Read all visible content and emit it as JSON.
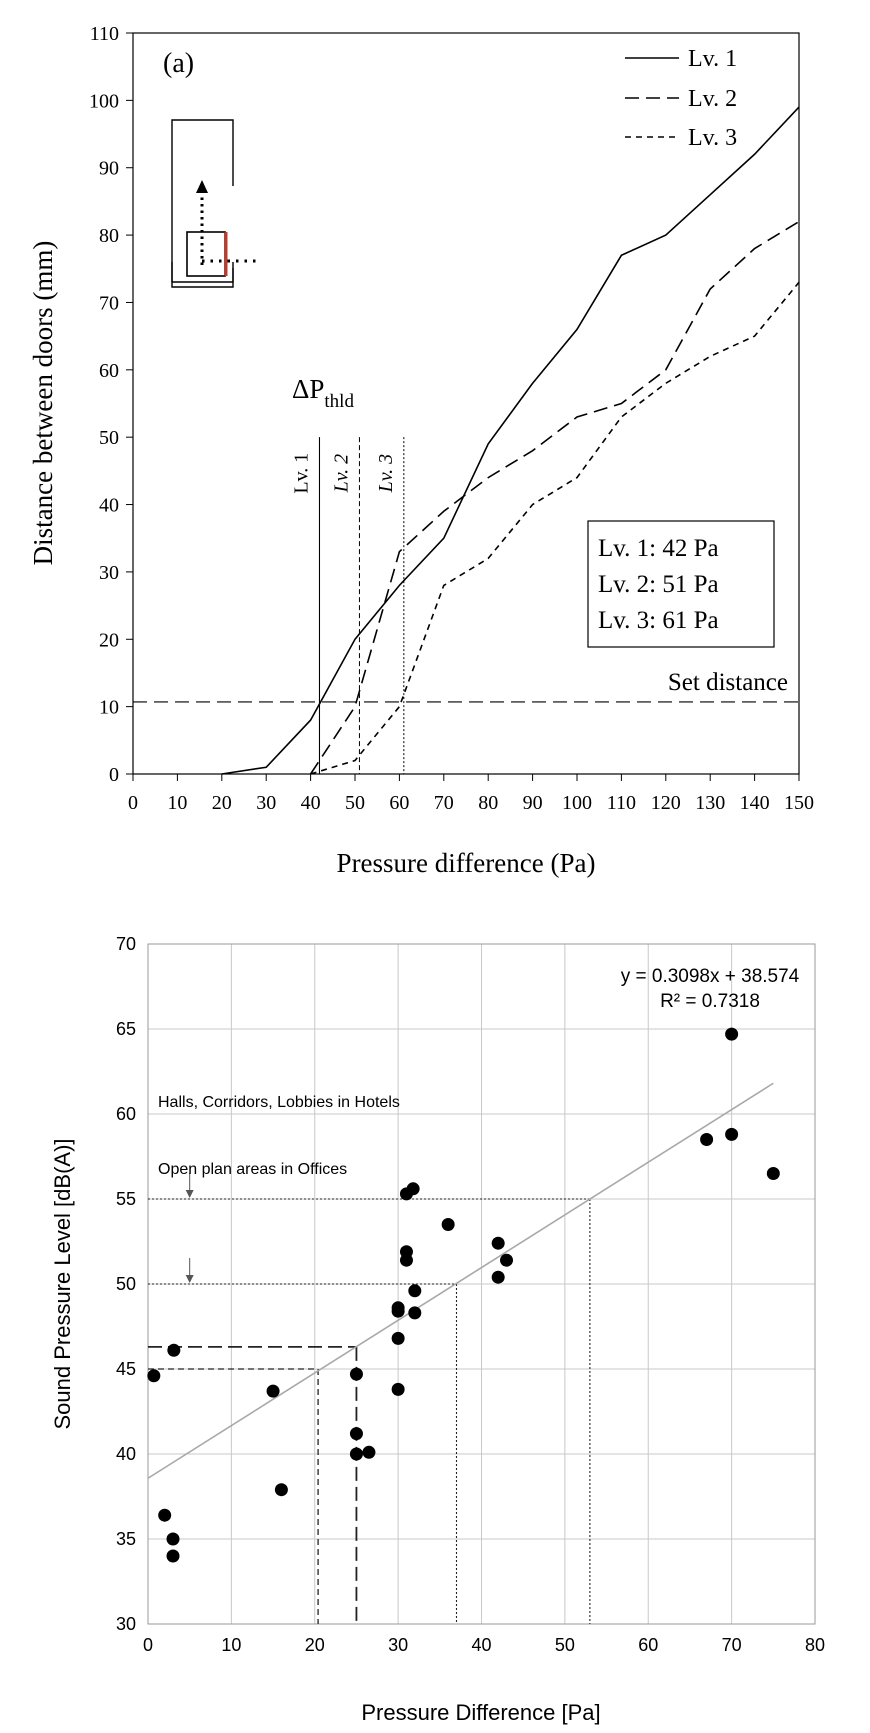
{
  "chart_data": [
    {
      "type": "line",
      "panel_label": "(a)",
      "xlabel": "Pressure difference (Pa)",
      "ylabel": "Distance between doors  (mm)",
      "xlim": [
        0,
        150
      ],
      "ylim": [
        0,
        110
      ],
      "xticks": [
        0,
        10,
        20,
        30,
        40,
        50,
        60,
        70,
        80,
        90,
        100,
        110,
        120,
        130,
        140,
        150
      ],
      "yticks": [
        0,
        10,
        20,
        30,
        40,
        50,
        60,
        70,
        80,
        90,
        100,
        110
      ],
      "grid": false,
      "legend": "top-right",
      "series": [
        {
          "name": "Lv. 1",
          "style": "solid",
          "x": [
            20,
            30,
            40,
            50,
            60,
            70,
            80,
            90,
            100,
            110,
            120,
            130,
            140,
            150
          ],
          "y": [
            0,
            1,
            8,
            20,
            28,
            35,
            49,
            58,
            66,
            77,
            80,
            86,
            92,
            99
          ]
        },
        {
          "name": "Lv. 2",
          "style": "long-dash",
          "x": [
            40,
            50,
            60,
            70,
            80,
            90,
            100,
            110,
            120,
            130,
            140,
            150
          ],
          "y": [
            0,
            10,
            33,
            39,
            44,
            48,
            53,
            55,
            60,
            72,
            78,
            82
          ]
        },
        {
          "name": "Lv. 3",
          "style": "short-dash",
          "x": [
            40,
            50,
            60,
            70,
            80,
            90,
            100,
            110,
            120,
            130,
            140,
            150
          ],
          "y": [
            0,
            2,
            10,
            28,
            32,
            40,
            44,
            53,
            58,
            62,
            65,
            73
          ]
        }
      ],
      "threshold_label": "ΔP",
      "threshold_subscript": "thld",
      "thresholds": [
        {
          "label": "Lv. 1",
          "x": 42,
          "style": "solid"
        },
        {
          "label": "Lv. 2",
          "x": 51,
          "style": "dashed"
        },
        {
          "label": "Lv. 3",
          "x": 61,
          "style": "dotted"
        }
      ],
      "threshold_box": [
        "Lv. 1: 42 Pa",
        "Lv. 2: 51 Pa",
        "Lv. 3: 61 Pa"
      ],
      "set_distance": {
        "label": "Set distance",
        "y": 10.7
      }
    },
    {
      "type": "scatter",
      "xlabel": "Pressure Difference [Pa]",
      "ylabel": "Sound Pressure Level [dB(A)]",
      "xlim": [
        0,
        80
      ],
      "ylim": [
        30,
        70
      ],
      "xticks": [
        0,
        10,
        20,
        30,
        40,
        50,
        60,
        70,
        80
      ],
      "yticks": [
        30,
        35,
        40,
        45,
        50,
        55,
        60,
        65,
        70
      ],
      "grid": true,
      "points": [
        [
          0.7,
          44.6
        ],
        [
          2,
          36.4
        ],
        [
          3,
          35.0
        ],
        [
          3,
          34.0
        ],
        [
          3.1,
          46.1
        ],
        [
          15,
          43.7
        ],
        [
          16,
          37.9
        ],
        [
          25,
          44.7
        ],
        [
          25,
          41.2
        ],
        [
          25,
          40.0
        ],
        [
          26.5,
          40.1
        ],
        [
          30,
          48.6
        ],
        [
          30,
          48.4
        ],
        [
          30,
          46.8
        ],
        [
          30,
          43.8
        ],
        [
          31,
          55.3
        ],
        [
          31,
          51.9
        ],
        [
          31,
          51.4
        ],
        [
          31.8,
          55.6
        ],
        [
          32,
          49.6
        ],
        [
          32,
          48.3
        ],
        [
          36,
          53.5
        ],
        [
          42,
          52.4
        ],
        [
          42,
          50.4
        ],
        [
          43,
          51.4
        ],
        [
          67,
          58.5
        ],
        [
          70,
          64.7
        ],
        [
          70,
          58.8
        ],
        [
          75,
          56.5
        ]
      ],
      "trendline": {
        "equation": "y = 0.3098x + 38.574",
        "r_squared": "R² = 0.7318",
        "slope": 0.3098,
        "intercept": 38.574,
        "x_range": [
          0,
          75
        ]
      },
      "reference_levels": [
        {
          "label": "Halls, Corridors, Lobbies in Hotels",
          "y": 55,
          "x_intersect": 53.0,
          "arrow_x": 5,
          "style": "dotted"
        },
        {
          "label": "Open plan areas in Offices",
          "y": 50,
          "x_intersect": 37.0,
          "arrow_x": 5,
          "style": "dotted"
        },
        {
          "y": 46.3,
          "x_intersect": 25.0,
          "style": "long-dash"
        },
        {
          "y": 45,
          "x_intersect": 20.4,
          "style": "dashed"
        }
      ]
    }
  ]
}
